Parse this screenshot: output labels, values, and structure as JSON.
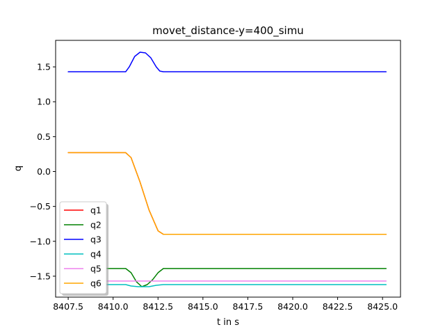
{
  "chart_data": {
    "type": "line",
    "title": "movet_distance-y=400_simu",
    "xlabel": "t in s",
    "ylabel": "q",
    "xlim": [
      8406.8,
      8426.0
    ],
    "ylim": [
      -1.8,
      1.88
    ],
    "xticks": [
      8407.5,
      8410.0,
      8412.5,
      8415.0,
      8417.5,
      8420.0,
      8422.5,
      8425.0
    ],
    "xtick_labels": [
      "8407.5",
      "8410.0",
      "8412.5",
      "8415.0",
      "8417.5",
      "8420.0",
      "8422.5",
      "8425.0"
    ],
    "yticks": [
      -1.5,
      -1.0,
      -0.5,
      0.0,
      0.5,
      1.0,
      1.5
    ],
    "ytick_labels": [
      "−1.5",
      "−1.0",
      "−0.5",
      "0.0",
      "0.5",
      "1.0",
      "1.5"
    ],
    "grid": false,
    "legend_position": "lower-left",
    "series": [
      {
        "name": "q1",
        "color": "#ff0000",
        "x": [
          8407.5,
          8410.7,
          8411.0,
          8411.5,
          8412.0,
          8412.5,
          8412.8,
          8425.2
        ],
        "y": [
          0.27,
          0.27,
          0.2,
          -0.15,
          -0.55,
          -0.85,
          -0.9,
          -0.9
        ]
      },
      {
        "name": "q2",
        "color": "#008000",
        "x": [
          8407.5,
          8410.7,
          8411.0,
          8411.3,
          8411.6,
          8411.9,
          8412.2,
          8412.5,
          8412.8,
          8425.2
        ],
        "y": [
          -1.39,
          -1.39,
          -1.45,
          -1.58,
          -1.65,
          -1.62,
          -1.55,
          -1.45,
          -1.39,
          -1.39
        ]
      },
      {
        "name": "q3",
        "color": "#0000ff",
        "x": [
          8407.5,
          8410.7,
          8410.9,
          8411.2,
          8411.5,
          8411.8,
          8412.1,
          8412.4,
          8412.6,
          8412.8,
          8425.2
        ],
        "y": [
          1.43,
          1.43,
          1.5,
          1.65,
          1.71,
          1.7,
          1.63,
          1.5,
          1.44,
          1.43,
          1.43
        ]
      },
      {
        "name": "q4",
        "color": "#00bfbf",
        "x": [
          8407.5,
          8410.7,
          8411.0,
          8411.4,
          8412.0,
          8412.4,
          8412.8,
          8425.2
        ],
        "y": [
          -1.62,
          -1.62,
          -1.64,
          -1.65,
          -1.65,
          -1.63,
          -1.62,
          -1.62
        ]
      },
      {
        "name": "q5",
        "color": "#ee82ee",
        "x": [
          8407.5,
          8425.2
        ],
        "y": [
          -1.57,
          -1.57
        ]
      },
      {
        "name": "q6",
        "color": "#ffa500",
        "x": [
          8407.5,
          8410.7,
          8411.0,
          8411.5,
          8412.0,
          8412.5,
          8412.8,
          8425.2
        ],
        "y": [
          0.27,
          0.27,
          0.2,
          -0.15,
          -0.55,
          -0.85,
          -0.9,
          -0.9
        ]
      }
    ]
  }
}
